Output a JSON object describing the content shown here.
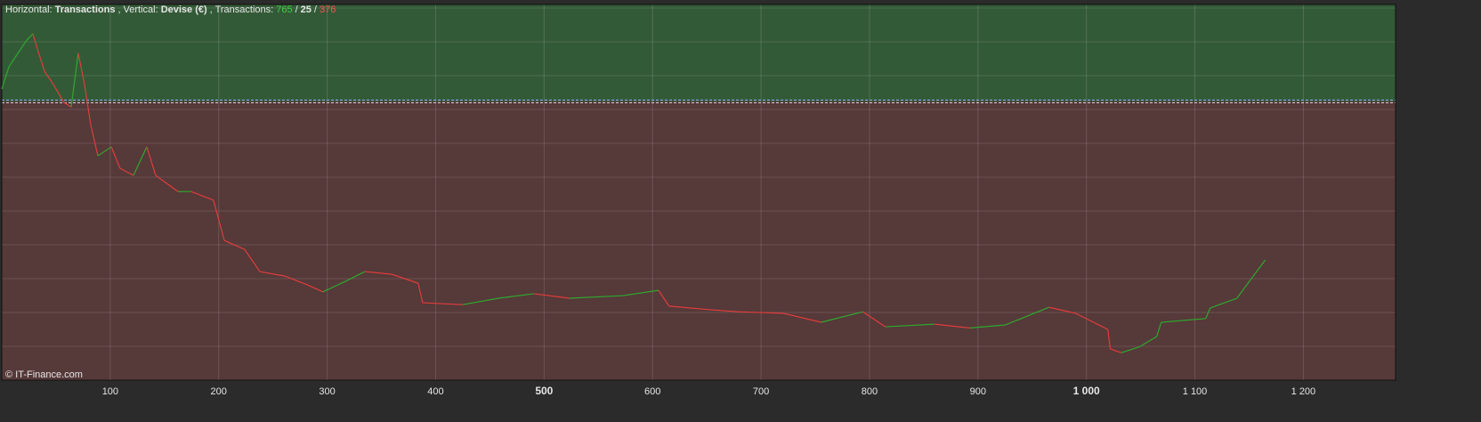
{
  "header": {
    "h_label": "Horizontal:",
    "h_value": "Transactions",
    "v_label": ", Vertical:",
    "v_value": "Devise (€)",
    "t_label": ", Transactions:",
    "wins": "765",
    "sep1": "/",
    "flat": "25",
    "sep2": "/",
    "losses": "376"
  },
  "footer": "© IT-Finance.com",
  "chart_data": {
    "type": "line",
    "x": [
      0,
      6.6,
      14.8,
      23,
      28.7,
      32.8,
      39.4,
      47.6,
      57.4,
      64,
      70.5,
      76.3,
      82,
      88.6,
      101,
      109,
      121.4,
      133.7,
      141.9,
      162.4,
      174.7,
      195.2,
      205.1,
      223.9,
      237.9,
      260.9,
      281.4,
      296.1,
      318.3,
      334.7,
      359.3,
      383.9,
      388,
      425,
      457.8,
      490.6,
      523.4,
      572.6,
      605.4,
      615.3,
      654.6,
      679.3,
      720.3,
      755.5,
      794,
      814.6,
      859.7,
      892.5,
      925.3,
      965.4,
      990,
      1019.7,
      1022,
      1032,
      1048.4,
      1064.8,
      1068.9,
      1110,
      1114.1,
      1138.7,
      1155.1,
      1164.9
    ],
    "series": [
      {
        "name": "Devise (€)",
        "up_color": "#2ea82e",
        "down_color": "#e03c3c",
        "values": [
          77.5,
          83.4,
          87.0,
          90.5,
          92.2,
          88.2,
          82.2,
          78.7,
          73.9,
          72.7,
          87.0,
          78.7,
          68.0,
          59.7,
          62.1,
          56.4,
          54.5,
          62.1,
          54.5,
          50.2,
          50.2,
          47.9,
          37.2,
          34.8,
          28.9,
          27.7,
          25.4,
          23.5,
          26.5,
          28.9,
          28.2,
          25.8,
          20.6,
          20.1,
          21.8,
          23.0,
          21.8,
          22.5,
          23.9,
          19.7,
          18.7,
          18.2,
          17.8,
          15.4,
          18.2,
          14.2,
          14.9,
          13.9,
          14.7,
          19.4,
          17.8,
          13.5,
          8.3,
          7.3,
          8.8,
          11.6,
          15.4,
          16.4,
          19.2,
          21.8,
          28.2,
          32.0
        ]
      }
    ],
    "baseline": 74.2,
    "above_color": "#335a37",
    "below_color": "#563939",
    "xlim": [
      0,
      1285
    ],
    "ylim": [
      0,
      100
    ],
    "xticks": [
      100,
      200,
      300,
      400,
      500,
      600,
      700,
      800,
      900,
      {
        "value": 1000,
        "label": "1 000"
      },
      {
        "value": 1100,
        "label": "1 100"
      },
      {
        "value": 1200,
        "label": "1 200"
      }
    ],
    "bold_ticks": [
      500,
      1000
    ],
    "grid": true
  }
}
